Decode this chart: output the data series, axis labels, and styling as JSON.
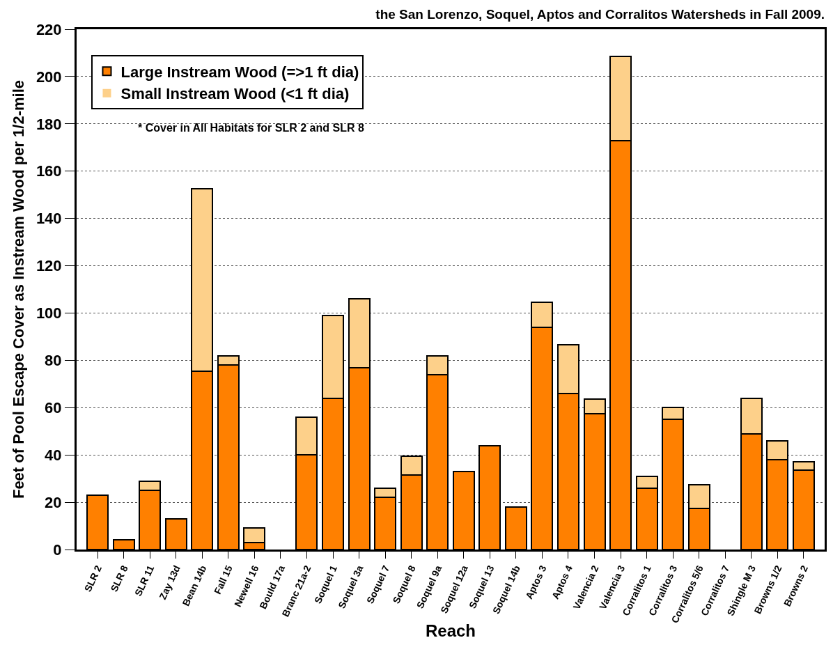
{
  "chart_data": {
    "type": "bar",
    "title": "the San Lorenzo, Soquel, Aptos and Corralitos Watersheds in Fall 2009.",
    "xlabel": "Reach",
    "ylabel": "Feet of Pool Escape Cover as Instream Wood per 1/2-mile",
    "categories": [
      "SLR 2",
      "SLR 8",
      "SLR 11",
      "Zay 13d",
      "Bean 14b",
      "Fall 15",
      "Newell 16",
      "Bould 17a",
      "Branc 21a-2",
      "Soquel 1",
      "Soquel 3a",
      "Soquel 7",
      "Soquel 8",
      "Soquel 9a",
      "Soquel 12a",
      "Soquel 13",
      "Soquel 14b",
      "Aptos 3",
      "Aptos 4",
      "Valencia 2",
      "Valencia 3",
      "Corralitos 1",
      "Corralitos 3",
      "Corralitos 5/6",
      "Corralitos 7",
      "Shingle M 3",
      "Browns 1/2",
      "Browns 2"
    ],
    "series": [
      {
        "name": "Large Instream Wood (=>1 ft dia)",
        "color": "#ff8000",
        "values": [
          23,
          4,
          25,
          13,
          75.5,
          78,
          3,
          0,
          40,
          64,
          77,
          22,
          31.5,
          74,
          33,
          44,
          18,
          94,
          66,
          57.5,
          173,
          26,
          55,
          17.5,
          0,
          49,
          38,
          33.5
        ]
      },
      {
        "name": "Small Instream Wood (<1 ft dia)",
        "color": "#fdd08a",
        "values": [
          0,
          0,
          4,
          0,
          77,
          4,
          6,
          0,
          16,
          35,
          29,
          4,
          8,
          8,
          0,
          0,
          0,
          10.5,
          20.5,
          6,
          35.5,
          5,
          5,
          10,
          0,
          15,
          8,
          3.5
        ]
      }
    ],
    "stacked": true,
    "ylim": [
      0,
      220
    ],
    "yticks": [
      0,
      20,
      40,
      60,
      80,
      100,
      120,
      140,
      160,
      180,
      200,
      220
    ],
    "grid": "y",
    "legend": "top left",
    "annotations": [
      "* Cover in All Habitats for SLR 2 and SLR 8"
    ]
  }
}
